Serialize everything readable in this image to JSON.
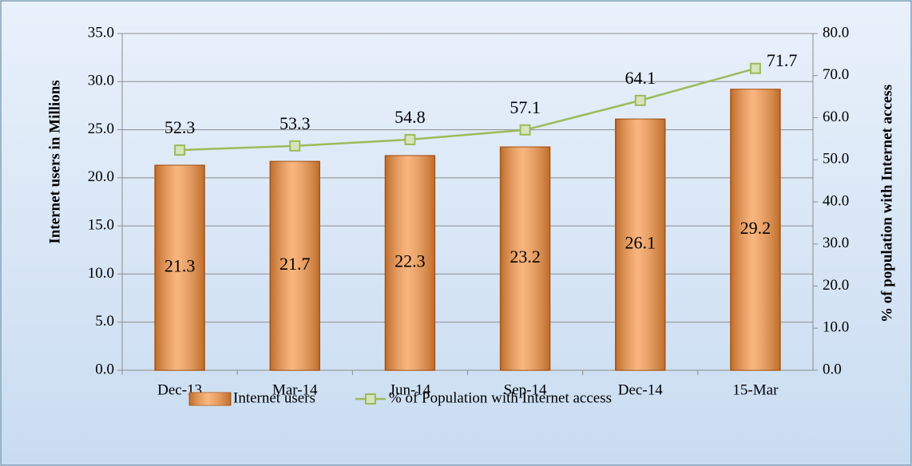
{
  "chart_data": {
    "type": "bar_line",
    "categories": [
      "Dec-13",
      "Mar-14",
      "Jun-14",
      "Sep-14",
      "Dec-14",
      "15-Mar"
    ],
    "series": [
      {
        "name": "Internet users",
        "type": "bar",
        "color": "#f79646",
        "values": [
          21.3,
          21.7,
          22.3,
          23.2,
          26.1,
          29.2
        ]
      },
      {
        "name": "% of Population with Internet access",
        "type": "line",
        "axis": "y2",
        "color": "#9bbb59",
        "values": [
          52.3,
          53.3,
          54.8,
          57.1,
          64.1,
          71.7
        ]
      }
    ],
    "ylabel": "Internet  users  in Millions",
    "y2label": "% of population with Internet  access",
    "ylim": [
      0,
      35
    ],
    "yticks": [
      {
        "value": 0,
        "label": "0.0"
      },
      {
        "value": 5,
        "label": "5.0"
      },
      {
        "value": 10,
        "label": "10.0"
      },
      {
        "value": 15,
        "label": "15.0"
      },
      {
        "value": 20,
        "label": "20.0"
      },
      {
        "value": 25,
        "label": "25.0"
      },
      {
        "value": 30,
        "label": "30.0"
      },
      {
        "value": 35,
        "label": "35.0"
      }
    ],
    "y2lim": [
      0,
      80
    ],
    "y2ticks": [
      {
        "value": 0,
        "label": "0.0"
      },
      {
        "value": 10,
        "label": "10.0"
      },
      {
        "value": 20,
        "label": "20.0"
      },
      {
        "value": 30,
        "label": "30.0"
      },
      {
        "value": 40,
        "label": "40.0"
      },
      {
        "value": 50,
        "label": "50.0"
      },
      {
        "value": 60,
        "label": "60.0"
      },
      {
        "value": 70,
        "label": "70.0"
      },
      {
        "value": 80,
        "label": "80.0"
      }
    ],
    "grid": true,
    "legend": "bottom"
  }
}
